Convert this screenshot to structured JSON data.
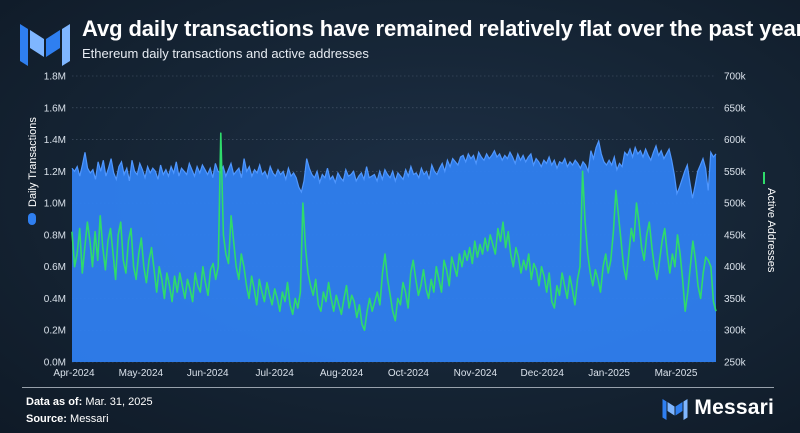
{
  "header": {
    "title": "Avg daily transactions have remained relatively flat over the past year",
    "subtitle": "Ethereum daily transactions and active addresses"
  },
  "footer": {
    "data_as_of_label": "Data as of:",
    "data_as_of_value": "Mar. 31, 2025",
    "source_label": "Source:",
    "source_value": "Messari",
    "brand": "Messari"
  },
  "colors": {
    "transactions": "#2f7ff0",
    "transactions_line": "#4f97ff",
    "active_addresses": "#2fdb6b",
    "grid": "#4a5a6e"
  },
  "chart_data": {
    "type": "area",
    "x_ticks": [
      "Apr-2024",
      "May-2024",
      "Jun-2024",
      "Jul-2024",
      "Aug-2024",
      "Oct-2024",
      "Nov-2024",
      "Dec-2024",
      "Jan-2025",
      "Mar-2025"
    ],
    "y_left": {
      "label": "Daily Transactions",
      "range": [
        0,
        1800000
      ],
      "ticks": [
        "0.0M",
        "0.2M",
        "0.4M",
        "0.6M",
        "0.8M",
        "1.0M",
        "1.2M",
        "1.4M",
        "1.6M",
        "1.8M"
      ]
    },
    "y_right": {
      "label": "Active Addresses",
      "range": [
        250000,
        700000
      ],
      "ticks": [
        "250k",
        "300k",
        "350k",
        "400k",
        "450k",
        "500k",
        "550k",
        "600k",
        "650k",
        "700k"
      ]
    },
    "grid": true,
    "series": [
      {
        "name": "Daily Transactions",
        "axis": "left",
        "style": "area",
        "values": [
          1220000,
          1200000,
          1230000,
          1170000,
          1240000,
          1320000,
          1220000,
          1190000,
          1210000,
          1150000,
          1260000,
          1200000,
          1270000,
          1170000,
          1220000,
          1280000,
          1190000,
          1150000,
          1230000,
          1260000,
          1180000,
          1220000,
          1140000,
          1270000,
          1200000,
          1180000,
          1250000,
          1210000,
          1160000,
          1230000,
          1190000,
          1220000,
          1200000,
          1150000,
          1240000,
          1180000,
          1210000,
          1170000,
          1230000,
          1190000,
          1260000,
          1170000,
          1220000,
          1200000,
          1180000,
          1250000,
          1210000,
          1170000,
          1230000,
          1190000,
          1240000,
          1210000,
          1180000,
          1220000,
          1160000,
          1250000,
          1200000,
          1190000,
          1230000,
          1170000,
          1210000,
          1250000,
          1180000,
          1200000,
          1220000,
          1160000,
          1280000,
          1200000,
          1230000,
          1170000,
          1210000,
          1190000,
          1240000,
          1180000,
          1200000,
          1160000,
          1230000,
          1190000,
          1170000,
          1210000,
          1180000,
          1200000,
          1150000,
          1220000,
          1170000,
          1190000,
          1160000,
          1100000,
          1070000,
          1140000,
          1280000,
          1220000,
          1180000,
          1160000,
          1200000,
          1130000,
          1180000,
          1160000,
          1220000,
          1150000,
          1170000,
          1130000,
          1190000,
          1160000,
          1140000,
          1210000,
          1170000,
          1180000,
          1200000,
          1140000,
          1170000,
          1190000,
          1150000,
          1230000,
          1160000,
          1170000,
          1180000,
          1140000,
          1200000,
          1150000,
          1210000,
          1180000,
          1160000,
          1200000,
          1140000,
          1190000,
          1170000,
          1150000,
          1210000,
          1170000,
          1230000,
          1180000,
          1190000,
          1160000,
          1220000,
          1180000,
          1200000,
          1150000,
          1240000,
          1200000,
          1180000,
          1220000,
          1250000,
          1200000,
          1270000,
          1230000,
          1280000,
          1260000,
          1240000,
          1290000,
          1300000,
          1260000,
          1310000,
          1280000,
          1300000,
          1250000,
          1320000,
          1290000,
          1270000,
          1310000,
          1280000,
          1300000,
          1330000,
          1290000,
          1310000,
          1270000,
          1300000,
          1280000,
          1320000,
          1290000,
          1250000,
          1310000,
          1270000,
          1300000,
          1260000,
          1290000,
          1310000,
          1240000,
          1280000,
          1260000,
          1230000,
          1270000,
          1250000,
          1290000,
          1240000,
          1270000,
          1220000,
          1260000,
          1250000,
          1280000,
          1230000,
          1260000,
          1240000,
          1270000,
          1250000,
          1220000,
          1260000,
          1240000,
          1200000,
          1330000,
          1280000,
          1350000,
          1390000,
          1310000,
          1260000,
          1240000,
          1270000,
          1240000,
          1290000,
          1210000,
          1250000,
          1230000,
          1320000,
          1300000,
          1340000,
          1290000,
          1350000,
          1310000,
          1330000,
          1290000,
          1340000,
          1300000,
          1270000,
          1320000,
          1360000,
          1300000,
          1330000,
          1280000,
          1310000,
          1340000,
          1270000,
          1180000,
          1060000,
          1100000,
          1150000,
          1200000,
          1240000,
          1130000,
          1030000,
          1110000,
          1200000,
          1240000,
          1280000,
          1220000,
          1080000,
          1320000,
          1290000,
          1310000
        ]
      },
      {
        "name": "Active Addresses",
        "axis": "right",
        "style": "line",
        "values": [
          455000,
          400000,
          420000,
          460000,
          390000,
          430000,
          470000,
          440000,
          400000,
          455000,
          410000,
          480000,
          430000,
          395000,
          440000,
          460000,
          420000,
          380000,
          450000,
          470000,
          410000,
          390000,
          440000,
          460000,
          400000,
          380000,
          420000,
          445000,
          400000,
          375000,
          410000,
          430000,
          395000,
          360000,
          400000,
          380000,
          350000,
          390000,
          370000,
          345000,
          385000,
          360000,
          390000,
          370000,
          350000,
          380000,
          365000,
          345000,
          390000,
          370000,
          360000,
          400000,
          375000,
          355000,
          395000,
          405000,
          380000,
          400000,
          610000,
          450000,
          420000,
          405000,
          480000,
          440000,
          400000,
          380000,
          420000,
          400000,
          370000,
          350000,
          385000,
          365000,
          340000,
          380000,
          360000,
          345000,
          375000,
          355000,
          340000,
          365000,
          350000,
          330000,
          360000,
          345000,
          375000,
          340000,
          325000,
          350000,
          335000,
          360000,
          500000,
          430000,
          390000,
          370000,
          355000,
          380000,
          340000,
          330000,
          360000,
          345000,
          375000,
          350000,
          330000,
          355000,
          340000,
          325000,
          350000,
          370000,
          335000,
          355000,
          345000,
          320000,
          340000,
          310000,
          300000,
          330000,
          350000,
          330000,
          345000,
          360000,
          340000,
          390000,
          420000,
          380000,
          355000,
          330000,
          315000,
          350000,
          340000,
          375000,
          360000,
          335000,
          390000,
          410000,
          380000,
          355000,
          370000,
          395000,
          365000,
          350000,
          380000,
          360000,
          400000,
          380000,
          360000,
          410000,
          395000,
          370000,
          415000,
          400000,
          385000,
          420000,
          400000,
          425000,
          410000,
          430000,
          405000,
          440000,
          415000,
          435000,
          420000,
          445000,
          425000,
          450000,
          435000,
          420000,
          460000,
          440000,
          470000,
          430000,
          455000,
          420000,
          400000,
          430000,
          415000,
          390000,
          410000,
          395000,
          420000,
          380000,
          405000,
          395000,
          370000,
          400000,
          385000,
          360000,
          390000,
          345000,
          335000,
          370000,
          355000,
          390000,
          370000,
          350000,
          385000,
          365000,
          340000,
          380000,
          400000,
          550000,
          470000,
          420000,
          390000,
          370000,
          395000,
          380000,
          360000,
          400000,
          420000,
          390000,
          410000,
          455000,
          520000,
          480000,
          440000,
          400000,
          380000,
          420000,
          460000,
          440000,
          500000,
          470000,
          430000,
          410000,
          450000,
          470000,
          430000,
          400000,
          380000,
          410000,
          440000,
          460000,
          420000,
          390000,
          420000,
          400000,
          450000,
          420000,
          380000,
          330000,
          360000,
          400000,
          440000,
          410000,
          370000,
          350000,
          390000,
          415000,
          410000,
          400000,
          345000,
          330000
        ]
      }
    ]
  }
}
